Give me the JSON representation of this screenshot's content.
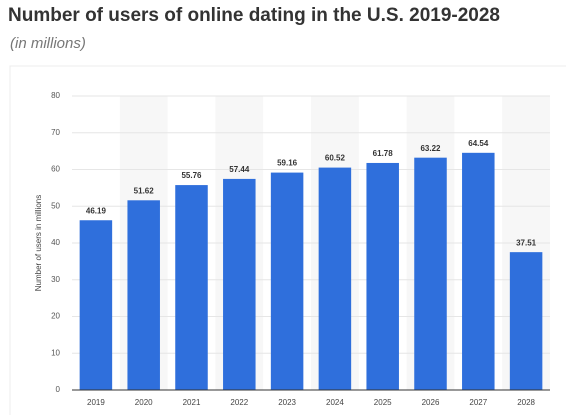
{
  "chart_data": {
    "type": "bar",
    "title": "Number of users of online dating in the U.S. 2019-2028",
    "subtitle": "(in millions)",
    "y_label": "Number of users in millions",
    "categories": [
      "2019",
      "2020",
      "2021",
      "2022",
      "2023",
      "2024",
      "2025",
      "2026",
      "2027",
      "2028"
    ],
    "values": [
      46.19,
      51.62,
      55.76,
      57.44,
      59.16,
      60.52,
      61.78,
      63.22,
      64.54,
      37.51
    ],
    "color": "#2f6fdc",
    "ylim": [
      0,
      80
    ],
    "yticks": [
      0,
      10,
      20,
      30,
      40,
      50,
      60,
      70,
      80
    ],
    "grid": true
  }
}
